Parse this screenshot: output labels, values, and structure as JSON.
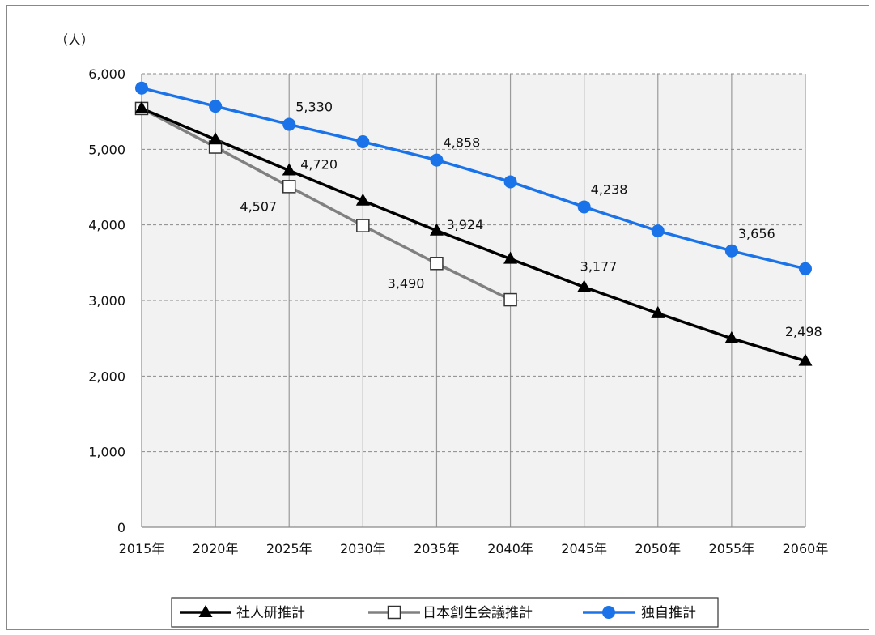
{
  "chart_data": {
    "type": "line",
    "ylabel": "（人）",
    "ylim": [
      0,
      6000
    ],
    "yticks": [
      "0",
      "1,000",
      "2,000",
      "3,000",
      "4,000",
      "5,000",
      "6,000"
    ],
    "ytick_values": [
      0,
      1000,
      2000,
      3000,
      4000,
      5000,
      6000
    ],
    "categories": [
      "2015年",
      "2020年",
      "2025年",
      "2030年",
      "2035年",
      "2040年",
      "2045年",
      "2050年",
      "2055年",
      "2060年"
    ],
    "grid": true,
    "legend_position": "bottom",
    "series": [
      {
        "name": "社人研推計",
        "color": "#000000",
        "marker": "triangle",
        "values": [
          5540,
          5130,
          4720,
          4320,
          3924,
          3550,
          3177,
          2830,
          2498,
          2200
        ],
        "labels": [
          null,
          null,
          "4,720",
          null,
          "3,924",
          null,
          "3,177",
          null,
          "2,498",
          null
        ]
      },
      {
        "name": "日本創生会議推計",
        "color": "#808080",
        "marker": "square-open",
        "values": [
          5540,
          5030,
          4507,
          3990,
          3490,
          3010,
          null,
          null,
          null,
          null
        ],
        "labels": [
          null,
          null,
          "4,507",
          null,
          "3,490",
          null,
          null,
          null,
          null,
          null
        ]
      },
      {
        "name": "独自推計",
        "color": "#1a73e8",
        "marker": "circle",
        "values": [
          5810,
          5570,
          5330,
          5100,
          4858,
          4570,
          4238,
          3920,
          3656,
          3420
        ],
        "labels": [
          null,
          null,
          "5,330",
          null,
          "4,858",
          null,
          "4,238",
          null,
          "3,656",
          null
        ]
      }
    ]
  }
}
